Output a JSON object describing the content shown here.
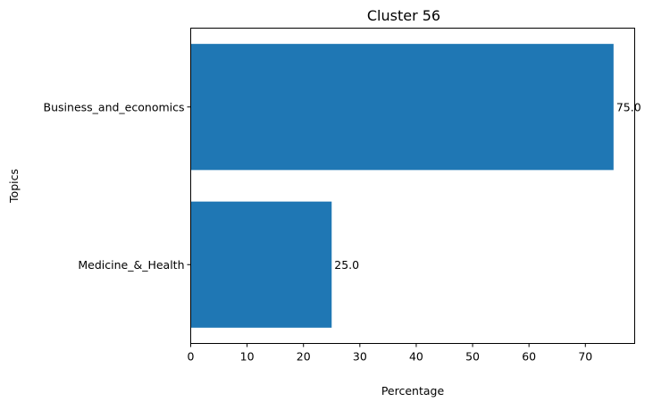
{
  "chart_data": {
    "type": "bar",
    "orientation": "horizontal",
    "title": "Cluster 56",
    "xlabel": "Percentage",
    "ylabel": "Topics",
    "categories": [
      "Business_and_economics",
      "Medicine_&_Health"
    ],
    "values": [
      75.0,
      25.0
    ],
    "data_labels": [
      "75.0",
      "25.0"
    ],
    "xlim": [
      0,
      78.75
    ],
    "xticks": [
      0,
      10,
      20,
      30,
      40,
      50,
      60,
      70
    ],
    "grid": false,
    "legend": "none",
    "bar_color": "#1f77b4"
  }
}
